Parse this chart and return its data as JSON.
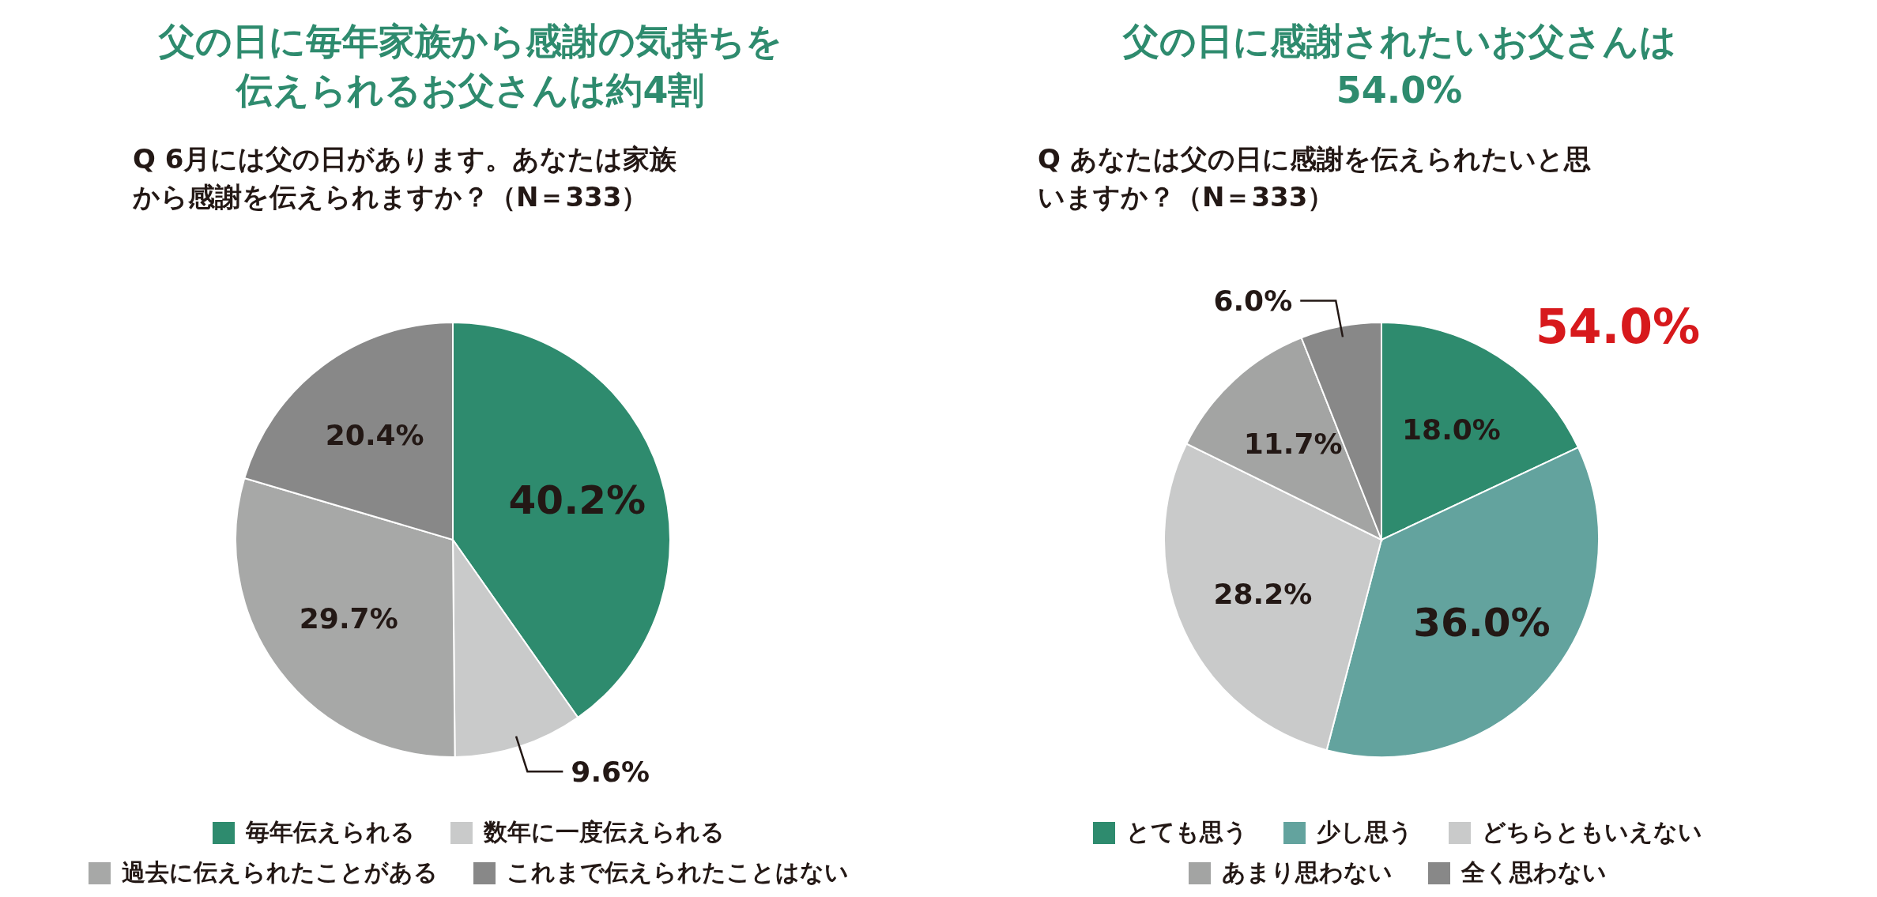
{
  "chart_data": [
    {
      "type": "pie",
      "title": "父の日に毎年家族から感謝の気持ちを伝えられるお父さんは約4割",
      "subtitle": "Q 6月には父の日があります。あなたは家族から感謝を伝えられますか？（N＝333）",
      "categories": [
        "毎年伝えられる",
        "数年に一度伝えられる",
        "過去に伝えられたことがある",
        "これまで伝えられたことはない"
      ],
      "values": [
        40.2,
        9.6,
        29.7,
        20.4
      ],
      "colors": [
        "#2e8b6e",
        "#c9caca",
        "#a7a8a7",
        "#888888"
      ],
      "value_labels": [
        "40.2%",
        "9.6%",
        "29.7%",
        "20.4%"
      ],
      "legend": "bottom"
    },
    {
      "type": "pie",
      "title": "父の日に感謝されたいお父さんは54.0%",
      "subtitle": "Q あなたは父の日に感謝を伝えられたいと思いますか？（N＝333）",
      "categories": [
        "とても思う",
        "少し思う",
        "どちらともいえない",
        "あまり思わない",
        "全く思わない"
      ],
      "values": [
        18.0,
        36.0,
        28.2,
        11.7,
        6.0
      ],
      "colors": [
        "#2e8b6e",
        "#63a39e",
        "#c9caca",
        "#a3a4a3",
        "#888888"
      ],
      "value_labels": [
        "18.0%",
        "36.0%",
        "28.2%",
        "11.7%",
        "6.0%"
      ],
      "annotations": [
        "54.0%"
      ],
      "legend": "bottom"
    }
  ]
}
